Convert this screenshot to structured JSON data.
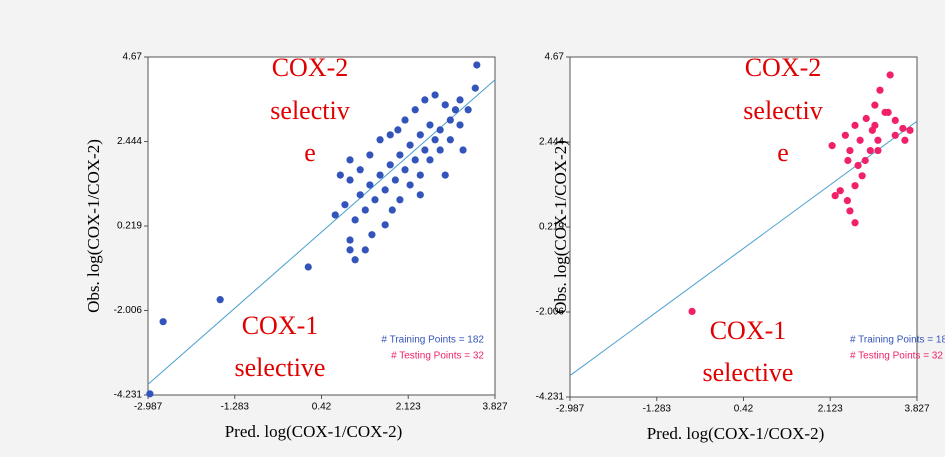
{
  "chart_data": [
    {
      "type": "scatter",
      "ylabel": "Obs. log(COX-1/COX-2)",
      "xlabel": "Pred. log(COX-1/COX-2)",
      "annotations": [
        "COX-2",
        "selectiv",
        "e",
        "COX-1",
        "selective"
      ],
      "xlim": [
        -2.987,
        3.827
      ],
      "ylim": [
        -4.231,
        4.67
      ],
      "xticks": [
        -2.987,
        -1.283,
        0.42,
        2.123,
        3.827
      ],
      "yticks": [
        4.67,
        2.444,
        0.219,
        -2.006,
        -4.231
      ],
      "fit_line": {
        "color": "#4a9ed0",
        "x": [
          -2.987,
          3.827
        ],
        "y": [
          -3.95,
          4.07
        ]
      },
      "series": [
        {
          "name": "# Training Points = 182",
          "color": "#3355bb",
          "x": [
            3.47,
            3.44,
            3.14,
            3.05,
            2.95,
            2.85,
            2.75,
            2.65,
            2.55,
            2.45,
            2.36,
            2.26,
            2.16,
            2.06,
            1.96,
            1.92,
            1.87,
            1.77,
            1.67,
            1.57,
            1.47,
            1.37,
            1.28,
            1.18,
            1.08,
            0.98,
            0.98,
            0.88,
            1.08,
            1.28,
            1.41,
            1.67,
            1.81,
            1.96,
            2.16,
            2.36,
            2.55,
            2.75,
            2.95,
            3.14,
            3.3,
            2.06,
            2.26,
            2.45,
            2.65,
            1.57,
            1.37,
            1.18,
            0.79,
            0.98,
            1.77,
            2.36,
            2.85,
            3.2,
            0.16,
            -1.57,
            -2.69,
            -2.95,
            0.98,
            0.69
          ],
          "values": [
            4.46,
            3.85,
            3.54,
            3.28,
            3.01,
            3.41,
            2.75,
            2.49,
            2.88,
            2.22,
            2.62,
            1.96,
            2.35,
            1.7,
            2.09,
            2.75,
            1.43,
            1.83,
            1.17,
            1.56,
            0.91,
            1.3,
            0.64,
            1.04,
            0.38,
            1.96,
            -0.15,
            0.78,
            -0.67,
            -0.41,
            -0.01,
            0.25,
            0.64,
            0.91,
            1.3,
            1.56,
            1.96,
            2.22,
            2.49,
            2.88,
            3.28,
            3.01,
            3.28,
            3.54,
            3.67,
            2.49,
            2.09,
            1.7,
            1.56,
            1.43,
            2.62,
            1.04,
            1.56,
            2.22,
            -0.86,
            -1.72,
            -2.3,
            -4.2,
            -0.41,
            0.51
          ]
        },
        {
          "name": "# Testing Points = 32",
          "color": "#f0206a",
          "x": [],
          "values": []
        }
      ]
    },
    {
      "type": "scatter",
      "ylabel": "Obs. log(COX-1/COX-2)",
      "xlabel": "Pred. log(COX-1/COX-2)",
      "annotations": [
        "COX-2",
        "selectiv",
        "e",
        "COX-1",
        "selective"
      ],
      "xlim": [
        -2.987,
        3.827
      ],
      "ylim": [
        -4.231,
        4.67
      ],
      "xticks": [
        -2.987,
        -1.283,
        0.42,
        2.123,
        3.827
      ],
      "yticks": [
        4.67,
        2.444,
        0.219,
        -2.006,
        -4.231
      ],
      "fit_line": {
        "color": "#4a9ed0",
        "x": [
          -2.987,
          3.827
        ],
        "y": [
          -3.67,
          2.99
        ]
      },
      "series": [
        {
          "name": "# Training Points = 182",
          "color": "#3355bb",
          "x": [],
          "values": []
        },
        {
          "name": "# Testing Points = 32",
          "color": "#f0206a",
          "x": [
            -0.59,
            2.16,
            2.42,
            2.61,
            2.83,
            3.0,
            3.1,
            3.3,
            3.2,
            3.4,
            3.55,
            3.69,
            3.59,
            3.4,
            2.95,
            2.71,
            2.51,
            2.47,
            2.67,
            2.91,
            3.06,
            2.75,
            2.61,
            2.32,
            2.22,
            2.46,
            2.51,
            2.61,
            3.06,
            3.26,
            2.81,
            3.0
          ],
          "values": [
            -1.99,
            2.35,
            2.62,
            2.88,
            3.06,
            3.41,
            3.8,
            4.2,
            3.22,
            3.01,
            2.8,
            2.75,
            2.49,
            2.62,
            2.75,
            2.49,
            2.22,
            1.96,
            1.83,
            2.22,
            2.49,
            1.56,
            1.3,
            1.17,
            1.04,
            0.91,
            0.64,
            0.33,
            2.22,
            3.22,
            1.96,
            2.88
          ]
        }
      ]
    }
  ]
}
